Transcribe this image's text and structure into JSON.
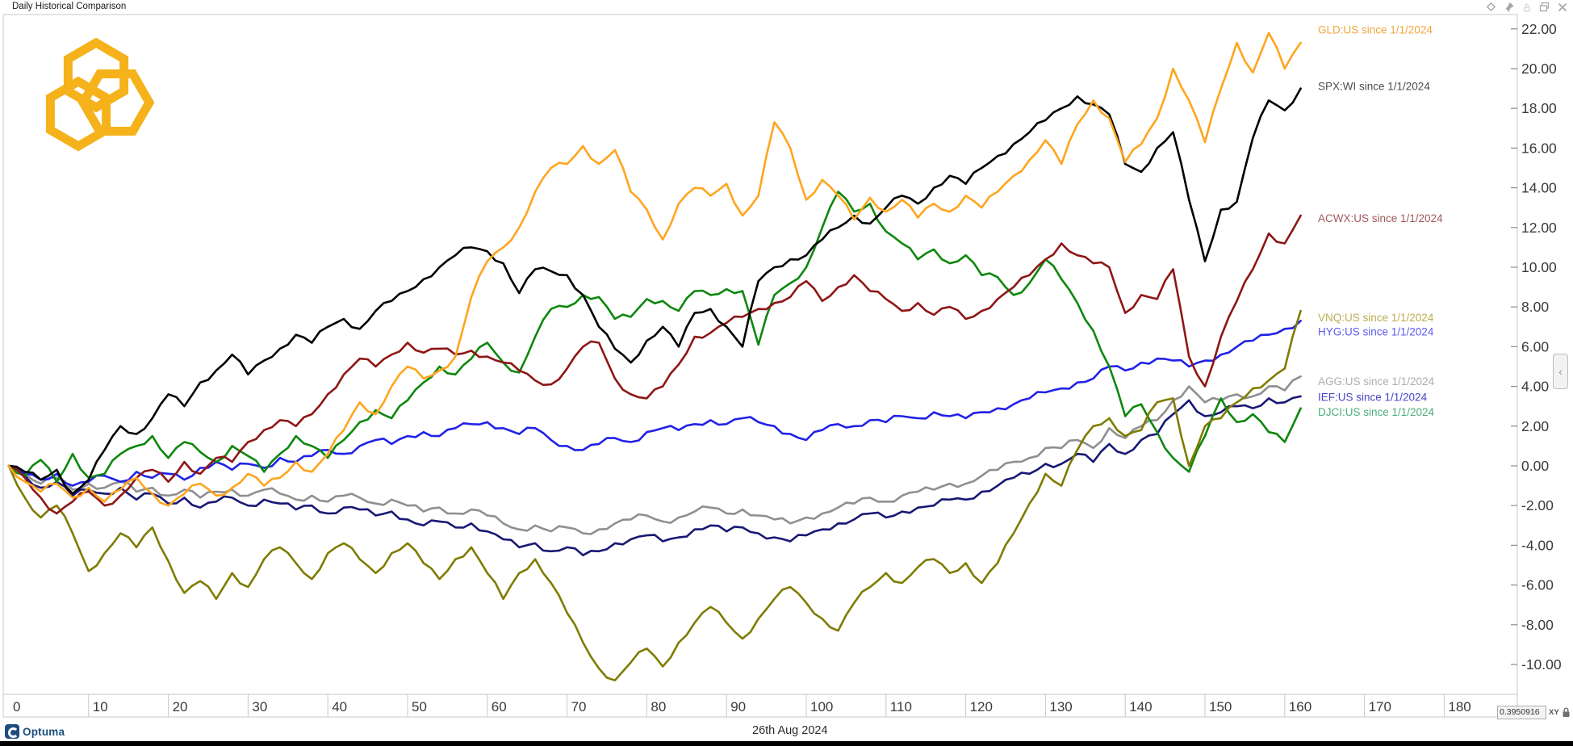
{
  "window": {
    "title": "Daily Historical Comparison",
    "icons": [
      {
        "name": "diamond-icon"
      },
      {
        "name": "pin-icon"
      },
      {
        "name": "lock-icon"
      },
      {
        "name": "copy-icon"
      },
      {
        "name": "close-icon"
      }
    ]
  },
  "chart_data": {
    "type": "line",
    "title": "Daily Historical Comparison",
    "xlabel": "",
    "ylabel": "",
    "x_axis": {
      "ticks": [
        0,
        10,
        20,
        30,
        40,
        50,
        60,
        70,
        80,
        90,
        100,
        110,
        120,
        130,
        140,
        150,
        160,
        170,
        180
      ],
      "range": [
        0,
        189
      ]
    },
    "y_axis": {
      "ticks": [
        "22.00",
        "20.00",
        "18.00",
        "16.00",
        "14.00",
        "12.00",
        "10.00",
        "8.00",
        "6.00",
        "4.00",
        "2.00",
        "0.00",
        "-2.00",
        "-4.00",
        "-6.00",
        "-8.00",
        "-10.00"
      ],
      "range": [
        -11.4,
        22.8
      ]
    },
    "grid": "x-strip-only",
    "legend_position": "right-of-line-ends",
    "x_step": 2,
    "x_unit": "trading days since 1/1/2024",
    "series": [
      {
        "name": "AGG",
        "label": "AGG:US since 1/1/2024",
        "color": "#8F8F8F",
        "label_color": "#ACACAC",
        "label_value": 4.25,
        "values": [
          0,
          -0.4,
          -0.9,
          -0.6,
          -1.2,
          -0.9,
          -1.1,
          -0.8,
          -1.3,
          -1.1,
          -1.5,
          -1.2,
          -1.6,
          -1.3,
          -1.2,
          -1.5,
          -1.2,
          -1.4,
          -1.7,
          -1.5,
          -1.8,
          -1.5,
          -1.6,
          -1.9,
          -1.7,
          -2.0,
          -2.3,
          -2.1,
          -2.4,
          -2.2,
          -2.5,
          -2.9,
          -3.2,
          -3.0,
          -3.3,
          -3.1,
          -3.4,
          -3.2,
          -2.9,
          -2.7,
          -2.5,
          -2.8,
          -2.6,
          -2.3,
          -2.1,
          -2.4,
          -2.2,
          -2.5,
          -2.7,
          -2.9,
          -2.6,
          -2.4,
          -2.1,
          -1.9,
          -1.6,
          -1.8,
          -1.5,
          -1.3,
          -1.2,
          -0.9,
          -0.9,
          -0.5,
          -0.2,
          0.2,
          0.4,
          0.9,
          0.9,
          1.3,
          0.9,
          1.9,
          1.4,
          2.0,
          2.3,
          3.3,
          4.0,
          3.2,
          3.3,
          3.6,
          3.5,
          4.0,
          3.8,
          4.5
        ]
      },
      {
        "name": "IEF",
        "label": "IEF:US since 1/1/2024",
        "color": "#181874",
        "label_color": "#4646C8",
        "label_value": 3.45,
        "values": [
          0,
          -0.5,
          -1.1,
          -0.8,
          -1.5,
          -1.2,
          -1.4,
          -1.1,
          -1.7,
          -1.4,
          -1.9,
          -1.6,
          -2.1,
          -1.8,
          -1.6,
          -2.0,
          -1.7,
          -1.9,
          -2.2,
          -2.0,
          -2.4,
          -2.1,
          -2.2,
          -2.5,
          -2.3,
          -2.7,
          -3.0,
          -2.8,
          -3.1,
          -2.9,
          -3.3,
          -3.7,
          -4.1,
          -3.9,
          -4.3,
          -4.1,
          -4.5,
          -4.3,
          -3.9,
          -3.7,
          -3.5,
          -3.8,
          -3.6,
          -3.2,
          -3.0,
          -3.3,
          -3.1,
          -3.4,
          -3.6,
          -3.8,
          -3.5,
          -3.2,
          -2.9,
          -2.7,
          -2.4,
          -2.6,
          -2.3,
          -2.1,
          -2.0,
          -1.7,
          -1.7,
          -1.3,
          -1.0,
          -0.6,
          -0.4,
          0.1,
          0.1,
          0.6,
          0.2,
          1.1,
          0.6,
          1.3,
          1.6,
          2.6,
          3.3,
          2.5,
          2.7,
          3.0,
          2.9,
          3.4,
          3.2,
          3.5
        ]
      },
      {
        "name": "HYG",
        "label": "HYG:US since 1/1/2024",
        "color": "#2121E8",
        "label_color": "#5B5BEF",
        "label_value": 6.75,
        "values": [
          0,
          -0.4,
          -0.7,
          -0.4,
          -1.0,
          -0.8,
          -0.5,
          -0.8,
          -0.3,
          -0.6,
          -0.4,
          -0.7,
          -0.1,
          0.2,
          -0.2,
          0.1,
          -0.1,
          0.4,
          0.2,
          0.5,
          0.8,
          0.6,
          1.0,
          1.3,
          1.1,
          1.5,
          1.7,
          1.5,
          1.9,
          2.1,
          2.2,
          1.9,
          1.6,
          1.9,
          1.3,
          1.0,
          0.8,
          1.1,
          1.4,
          1.2,
          1.7,
          1.9,
          1.8,
          2.1,
          2.3,
          2.1,
          2.4,
          2.2,
          2.0,
          1.6,
          1.3,
          1.8,
          2.1,
          2.0,
          2.3,
          2.2,
          2.5,
          2.4,
          2.7,
          2.5,
          2.4,
          2.7,
          2.9,
          3.1,
          3.4,
          3.7,
          3.9,
          4.2,
          4.4,
          5.0,
          4.8,
          5.2,
          5.4,
          5.3,
          5.0,
          5.3,
          5.6,
          6.0,
          6.3,
          6.6,
          6.9,
          7.3
        ]
      },
      {
        "name": "DJCI",
        "label": "DJCI:US since 1/1/2024",
        "color": "#0D870D",
        "label_color": "#4CAE7C",
        "label_value": 2.7,
        "values": [
          0,
          -0.5,
          0.3,
          -0.8,
          0.6,
          -0.6,
          -0.4,
          0.6,
          1.0,
          1.5,
          0.4,
          1.2,
          0.7,
          0.2,
          1.0,
          0.5,
          -0.3,
          0.6,
          1.5,
          1.0,
          0.4,
          1.3,
          2.2,
          2.8,
          2.4,
          3.3,
          4.2,
          5.0,
          4.6,
          5.4,
          6.2,
          5.2,
          4.7,
          6.5,
          7.9,
          8.0,
          8.6,
          8.5,
          7.4,
          7.5,
          8.4,
          8.3,
          7.8,
          8.8,
          8.6,
          8.9,
          8.8,
          6.1,
          8.6,
          9.2,
          10.0,
          12.0,
          13.8,
          12.8,
          13.2,
          11.8,
          11.2,
          10.4,
          10.9,
          10.2,
          10.6,
          9.6,
          9.5,
          8.6,
          9.2,
          10.4,
          9.4,
          8.2,
          6.8,
          5.0,
          2.5,
          3.1,
          1.7,
          0.4,
          -0.3,
          1.5,
          3.4,
          2.2,
          2.6,
          1.7,
          1.2,
          2.9
        ]
      },
      {
        "name": "VNQ",
        "label": "VNQ:US since 1/1/2024",
        "color": "#7F7C00",
        "label_color": "#BBAD4E",
        "label_value": 7.45,
        "values": [
          0,
          -1.6,
          -2.6,
          -2.0,
          -3.4,
          -5.3,
          -4.4,
          -3.4,
          -4.1,
          -3.1,
          -4.8,
          -6.4,
          -5.8,
          -6.7,
          -5.4,
          -6.1,
          -4.7,
          -4.1,
          -4.9,
          -5.7,
          -4.4,
          -3.9,
          -4.7,
          -5.4,
          -4.4,
          -3.9,
          -4.9,
          -5.7,
          -4.7,
          -4.1,
          -5.4,
          -6.7,
          -5.4,
          -4.7,
          -5.9,
          -7.4,
          -8.9,
          -10.2,
          -10.8,
          -9.9,
          -9.2,
          -10.1,
          -8.9,
          -7.9,
          -7.1,
          -7.9,
          -8.7,
          -7.7,
          -6.7,
          -6.1,
          -6.9,
          -7.7,
          -8.3,
          -6.9,
          -6.1,
          -5.4,
          -5.9,
          -5.1,
          -4.7,
          -5.4,
          -4.9,
          -5.9,
          -4.9,
          -3.4,
          -1.9,
          -0.4,
          -1.0,
          0.8,
          2.0,
          2.4,
          1.5,
          1.8,
          3.2,
          3.4,
          0.0,
          2.0,
          2.4,
          3.2,
          3.9,
          4.3,
          4.9,
          7.8
        ]
      },
      {
        "name": "ACWX",
        "label": "ACWX:US since 1/1/2024",
        "color": "#8E1616",
        "label_color": "#A2585A",
        "label_value": 12.45,
        "values": [
          0,
          -0.6,
          -1.6,
          -2.4,
          -1.8,
          -1.3,
          -2.0,
          -1.5,
          -0.6,
          -0.2,
          -0.8,
          0.2,
          -0.4,
          0.4,
          0.2,
          1.2,
          1.8,
          2.3,
          2.0,
          2.6,
          3.6,
          4.6,
          5.4,
          5.0,
          5.6,
          6.2,
          5.7,
          5.9,
          5.6,
          5.8,
          5.5,
          5.2,
          4.8,
          4.3,
          4.1,
          4.9,
          6.0,
          6.2,
          4.4,
          3.6,
          3.4,
          4.0,
          5.1,
          6.5,
          6.7,
          7.2,
          7.5,
          7.9,
          8.2,
          8.5,
          9.3,
          8.3,
          9.0,
          9.6,
          8.8,
          8.4,
          7.8,
          8.2,
          7.6,
          8.0,
          7.4,
          7.8,
          8.4,
          9.0,
          9.6,
          10.4,
          11.2,
          10.6,
          10.2,
          10.0,
          7.7,
          8.6,
          8.4,
          9.9,
          5.5,
          4.0,
          6.5,
          8.3,
          9.9,
          11.7,
          11.2,
          12.6
        ]
      },
      {
        "name": "SPX",
        "label": "SPX:WI since 1/1/2024",
        "color": "#000000",
        "label_color": "#4D4D4D",
        "label_value": 19.1,
        "values": [
          0,
          -0.3,
          -0.7,
          -0.2,
          -1.4,
          -0.7,
          0.8,
          2.0,
          1.6,
          2.4,
          3.6,
          3.0,
          4.2,
          4.8,
          5.6,
          4.6,
          5.3,
          5.9,
          6.6,
          6.2,
          7.0,
          7.4,
          6.9,
          7.8,
          8.3,
          8.8,
          9.4,
          10.0,
          10.6,
          11.0,
          10.8,
          10.2,
          8.7,
          9.9,
          9.8,
          9.6,
          8.6,
          7.0,
          5.9,
          5.2,
          6.3,
          7.0,
          6.0,
          7.7,
          7.9,
          7.0,
          6.0,
          9.3,
          10.0,
          10.4,
          10.6,
          11.4,
          12.0,
          12.6,
          12.2,
          13.0,
          13.6,
          13.2,
          14.0,
          14.6,
          14.2,
          15.0,
          15.6,
          16.2,
          16.8,
          17.4,
          18.0,
          18.6,
          18.2,
          17.7,
          15.2,
          14.8,
          16.0,
          16.8,
          13.4,
          10.3,
          12.9,
          13.3,
          16.5,
          18.4,
          17.9,
          19.0
        ]
      },
      {
        "name": "GLD",
        "label": "GLD:US since 1/1/2024",
        "color": "#FFA51E",
        "label_color": "#EFA63C",
        "label_value": 21.95,
        "values": [
          0,
          -0.8,
          -1.3,
          -0.9,
          -1.6,
          -1.1,
          -1.8,
          -1.2,
          -0.6,
          -1.4,
          -2.0,
          -1.4,
          -0.9,
          -1.5,
          -1.1,
          -0.4,
          -1.0,
          -0.6,
          0.2,
          -0.3,
          0.6,
          1.8,
          3.2,
          2.6,
          4.0,
          5.0,
          4.4,
          4.8,
          5.5,
          8.5,
          10.3,
          11.0,
          12.0,
          13.8,
          15.0,
          15.2,
          16.1,
          15.2,
          15.9,
          13.8,
          12.9,
          11.4,
          13.2,
          14.0,
          13.6,
          14.2,
          12.6,
          13.6,
          17.3,
          16.0,
          13.4,
          14.4,
          13.6,
          12.4,
          13.5,
          12.8,
          13.4,
          12.5,
          13.2,
          12.8,
          13.6,
          13.0,
          13.8,
          14.6,
          15.4,
          16.4,
          15.2,
          17.2,
          18.4,
          17.5,
          15.3,
          16.2,
          17.5,
          20.0,
          18.4,
          16.3,
          19.0,
          21.3,
          19.8,
          21.8,
          20.0,
          21.3
        ]
      }
    ],
    "footer_date": "26th Aug 2024"
  },
  "statusbar": {
    "coordinate_value": "0.3950916",
    "xy_label": "XY"
  },
  "branding": {
    "name": "Optuma"
  },
  "colors": {
    "accent_gold": "#F5B21B",
    "brand_blue": "#1D4E7E",
    "axis_border": "#C8C8C8",
    "axis_text": "#3A3A3A"
  }
}
